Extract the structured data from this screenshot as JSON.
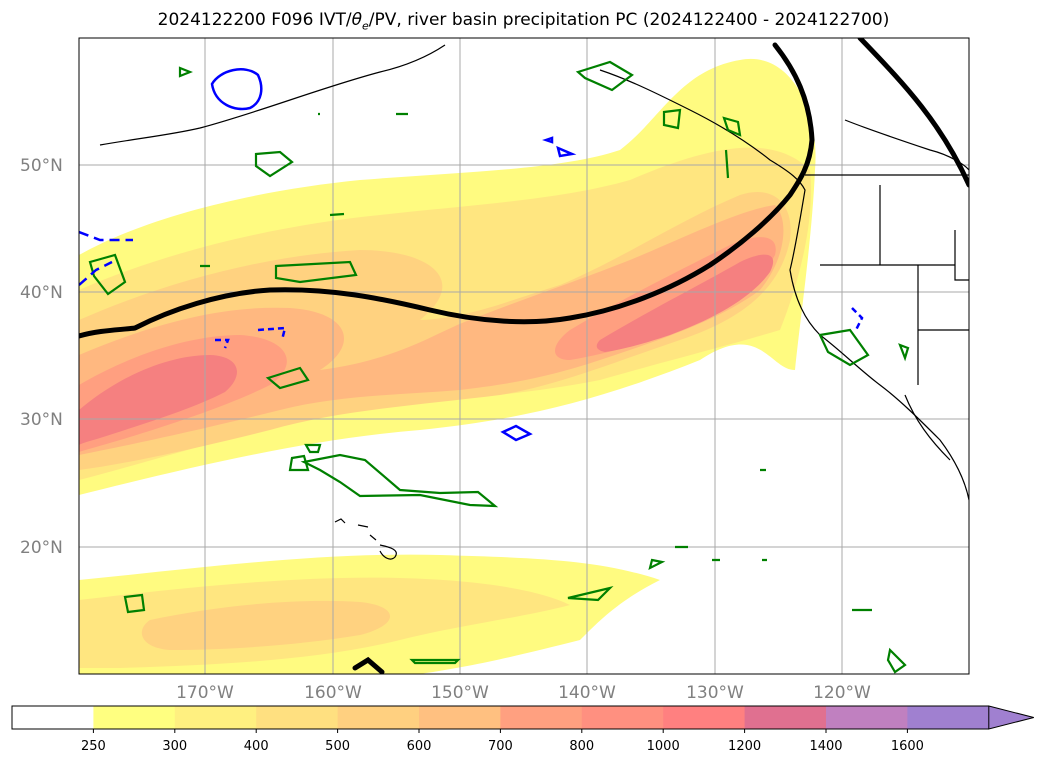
{
  "title_pre": "2024122200 F096 IVT/",
  "title_theta": "θ",
  "title_sub": "e",
  "title_post": "/PV, river basin precipitation PC (2024122400 - 2024122700)",
  "map": {
    "lat_labels": [
      "50°N",
      "40°N",
      "30°N",
      "20°N"
    ],
    "lon_labels": [
      "170°W",
      "160°W",
      "150°W",
      "140°W",
      "130°W",
      "120°W"
    ]
  },
  "colorbar": {
    "levels": [
      "250",
      "300",
      "400",
      "500",
      "600",
      "700",
      "800",
      "1000",
      "1200",
      "1400",
      "1600"
    ],
    "colors": [
      "#ffffff",
      "#ffff80",
      "#fff080",
      "#ffe080",
      "#ffd080",
      "#ffc080",
      "#ffa080",
      "#ff9080",
      "#ff8080",
      "#e07090",
      "#c080c0",
      "#a080d0"
    ]
  },
  "contours": {
    "ivt_fill_colors": [
      "#fffb80",
      "#ffe680",
      "#ffd280",
      "#ffb880",
      "#ff9f80",
      "#f58080"
    ],
    "pv_line_color": "#000000",
    "theta_e_color": "#008000",
    "precip_color": "#0000ff"
  }
}
